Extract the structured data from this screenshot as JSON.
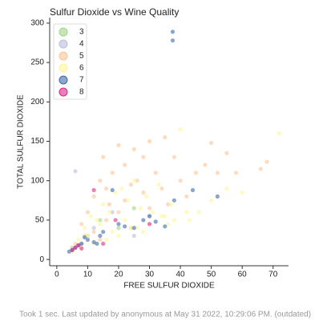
{
  "chart_data": {
    "type": "scatter",
    "title": "Sulfur Dioxide vs Wine Quality",
    "x_label": "FREE SULFUR DIOXIDE",
    "y_label": "TOTAL SULFUR DIOXIDE",
    "xlim": [
      -2.3,
      75
    ],
    "ylim": [
      -8,
      307
    ],
    "xticks": [
      0,
      10,
      20,
      30,
      40,
      50,
      60,
      70
    ],
    "yticks": [
      0,
      50,
      100,
      150,
      200,
      250,
      300
    ],
    "grid": false,
    "legend": "upper left",
    "series": [
      {
        "name": "3",
        "color": "#9ed68b",
        "x": [
          5,
          10,
          14,
          20,
          25
        ],
        "y": [
          15,
          30,
          50,
          40,
          65
        ]
      },
      {
        "name": "4",
        "color": "#bcbddc",
        "x": [
          6,
          12,
          18,
          25,
          30,
          8
        ],
        "y": [
          112,
          40,
          60,
          30,
          55,
          20
        ]
      },
      {
        "name": "5",
        "color": "#fdc597",
        "x": [
          6,
          8,
          10,
          12,
          14,
          15,
          16,
          17,
          18,
          20,
          22,
          24,
          25,
          26,
          28,
          30,
          32,
          34,
          35,
          36,
          38,
          40,
          42,
          45,
          48,
          50,
          52,
          55,
          58,
          66,
          68,
          12,
          16,
          20,
          24,
          28,
          9,
          14,
          22,
          30
        ],
        "y": [
          20,
          45,
          60,
          80,
          100,
          130,
          90,
          70,
          110,
          145,
          120,
          95,
          140,
          100,
          130,
          150,
          110,
          90,
          155,
          70,
          130,
          100,
          80,
          110,
          120,
          148,
          110,
          135,
          110,
          115,
          124,
          35,
          50,
          60,
          40,
          85,
          30,
          25,
          75,
          65
        ]
      },
      {
        "name": "6",
        "color": "#fff59a",
        "x": [
          5,
          7,
          9,
          11,
          13,
          15,
          17,
          19,
          21,
          23,
          25,
          27,
          29,
          31,
          33,
          35,
          37,
          40,
          43,
          46,
          50,
          55,
          60,
          72,
          10,
          14,
          18,
          22,
          26,
          30,
          34,
          38,
          42,
          12,
          20,
          28,
          36,
          8,
          16,
          24
        ],
        "y": [
          10,
          25,
          40,
          55,
          50,
          70,
          60,
          85,
          90,
          75,
          100,
          65,
          80,
          60,
          95,
          55,
          70,
          165,
          50,
          60,
          75,
          90,
          85,
          160,
          30,
          45,
          35,
          50,
          40,
          45,
          55,
          50,
          60,
          20,
          30,
          35,
          45,
          15,
          25,
          40
        ]
      },
      {
        "name": "7",
        "color": "#3d6ba8",
        "x": [
          4,
          5,
          6,
          7,
          8,
          10,
          12,
          14,
          15,
          18,
          20,
          22,
          25,
          28,
          30,
          32,
          35,
          37.5,
          37.5,
          38,
          44,
          52,
          9,
          13
        ],
        "y": [
          10,
          12,
          15,
          18,
          20,
          25,
          22,
          30,
          35,
          88,
          45,
          42,
          40,
          50,
          55,
          48,
          42,
          289,
          278,
          75,
          88,
          80,
          28,
          20
        ]
      },
      {
        "name": "8",
        "color": "#e0288a",
        "x": [
          5,
          6,
          7,
          8,
          12,
          19,
          30,
          15
        ],
        "y": [
          12,
          15,
          18,
          14,
          88,
          50,
          45,
          20
        ]
      }
    ]
  },
  "footer": "Took 1 sec. Last updated by anonymous at May 31 2022, 10:29:06 PM. (outdated)"
}
